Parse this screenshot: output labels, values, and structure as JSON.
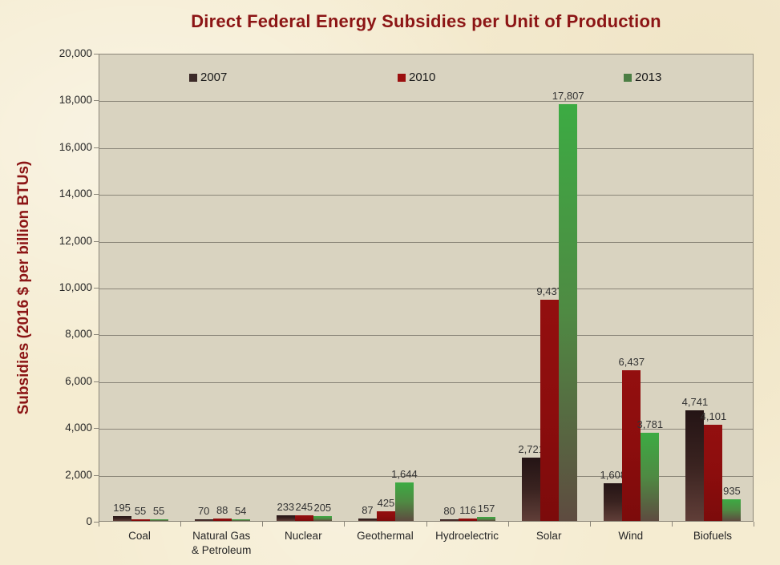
{
  "title": "Direct Federal Energy Subsidies per Unit of Production",
  "y_axis_title": "Subsidies (2016 $ per billion BTUs)",
  "legend": {
    "entries": [
      "2007",
      "2010",
      "2013"
    ]
  },
  "colors": {
    "title": "#8c1515",
    "background": "#f5ecd1",
    "plot_fill": "#d9d3c0",
    "grid": "#8a8578",
    "tick_label": "#262626",
    "data_label": "#333333",
    "series_2007": "#3c2a28",
    "series_2010": "#9b0f0f",
    "series_2013": "#4c7e44"
  },
  "chart_data": {
    "type": "bar",
    "title": "Direct Federal Energy Subsidies per Unit of Production",
    "xlabel": "",
    "ylabel": "Subsidies (2016 $ per billion BTUs)",
    "ylim": [
      0,
      20000
    ],
    "ytick_step": 2000,
    "yticks": [
      "0",
      "2,000",
      "4,000",
      "6,000",
      "8,000",
      "10,000",
      "12,000",
      "14,000",
      "16,000",
      "18,000",
      "20,000"
    ],
    "grid": true,
    "legend_position": "top-inside-horizontal",
    "categories": [
      "Coal",
      "Natural Gas & Petroleum",
      "Nuclear",
      "Geothermal",
      "Hydroelectric",
      "Solar",
      "Wind",
      "Biofuels"
    ],
    "category_display": [
      "Coal",
      "Natural Gas\n& Petroleum",
      "Nuclear",
      "Geothermal",
      "Hydroelectric",
      "Solar",
      "Wind",
      "Biofuels"
    ],
    "series": [
      {
        "name": "2007",
        "marker_color": "#3c2a28",
        "gradient": [
          "#241415",
          "#3a2320",
          "#603e38"
        ],
        "values": [
          195,
          70,
          233,
          87,
          80,
          2721,
          1608,
          4741
        ],
        "labels": [
          "195",
          "70",
          "233",
          "87",
          "80",
          "2,721",
          "1,608",
          "4,741"
        ]
      },
      {
        "name": "2010",
        "marker_color": "#9b0f0f",
        "gradient": [
          "#930f0f",
          "#8c0d0d",
          "#7c0b0b"
        ],
        "values": [
          55,
          88,
          245,
          425,
          116,
          9437,
          6437,
          4101
        ],
        "labels": [
          "55",
          "88",
          "245",
          "425",
          "116",
          "9,437",
          "6,437",
          "4,101"
        ]
      },
      {
        "name": "2013",
        "marker_color": "#4c7e44",
        "gradient": [
          "#3cab43",
          "#4f8a43",
          "#5e4b40"
        ],
        "values": [
          55,
          54,
          205,
          1644,
          157,
          17807,
          3781,
          935
        ],
        "labels": [
          "55",
          "54",
          "205",
          "1,644",
          "157",
          "17,807",
          "3,781",
          "935"
        ]
      }
    ]
  }
}
